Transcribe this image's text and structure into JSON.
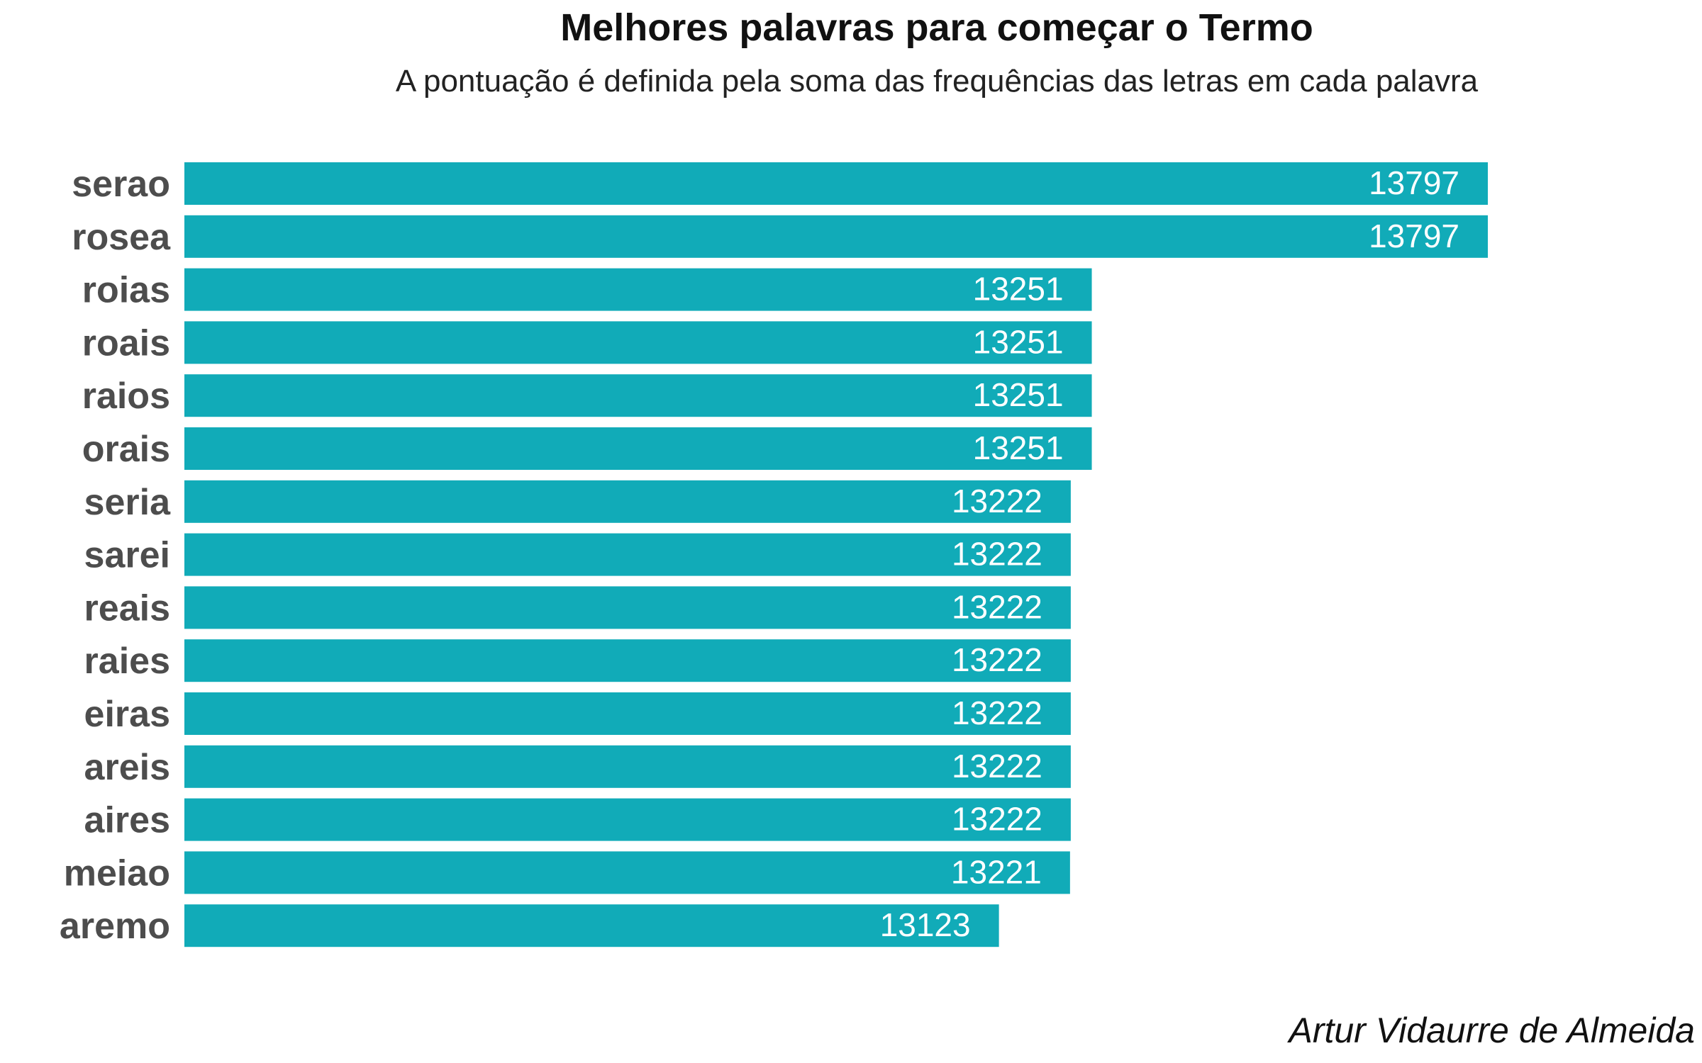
{
  "chart_data": {
    "type": "bar",
    "orientation": "horizontal",
    "title": "Melhores palavras para começar o Termo",
    "subtitle": "A pontuação é definida pela soma das frequências das letras em cada palavra",
    "categories": [
      "serao",
      "rosea",
      "roias",
      "roais",
      "raios",
      "orais",
      "seria",
      "sarei",
      "reais",
      "raies",
      "eiras",
      "areis",
      "aires",
      "meiao",
      "aremo"
    ],
    "values": [
      13797,
      13797,
      13251,
      13251,
      13251,
      13251,
      13222,
      13222,
      13222,
      13222,
      13222,
      13222,
      13222,
      13221,
      13123
    ],
    "value_labels": [
      "13797",
      "13797",
      "13251",
      "13251",
      "13251",
      "13251",
      "13222",
      "13222",
      "13222",
      "13222",
      "13222",
      "13222",
      "13222",
      "13221",
      "13123"
    ],
    "xlabel": "",
    "ylabel": "",
    "grid": false,
    "legend": "none",
    "bar_color": "#11abb8",
    "caption": "Artur Vidaurre de Almeida"
  }
}
